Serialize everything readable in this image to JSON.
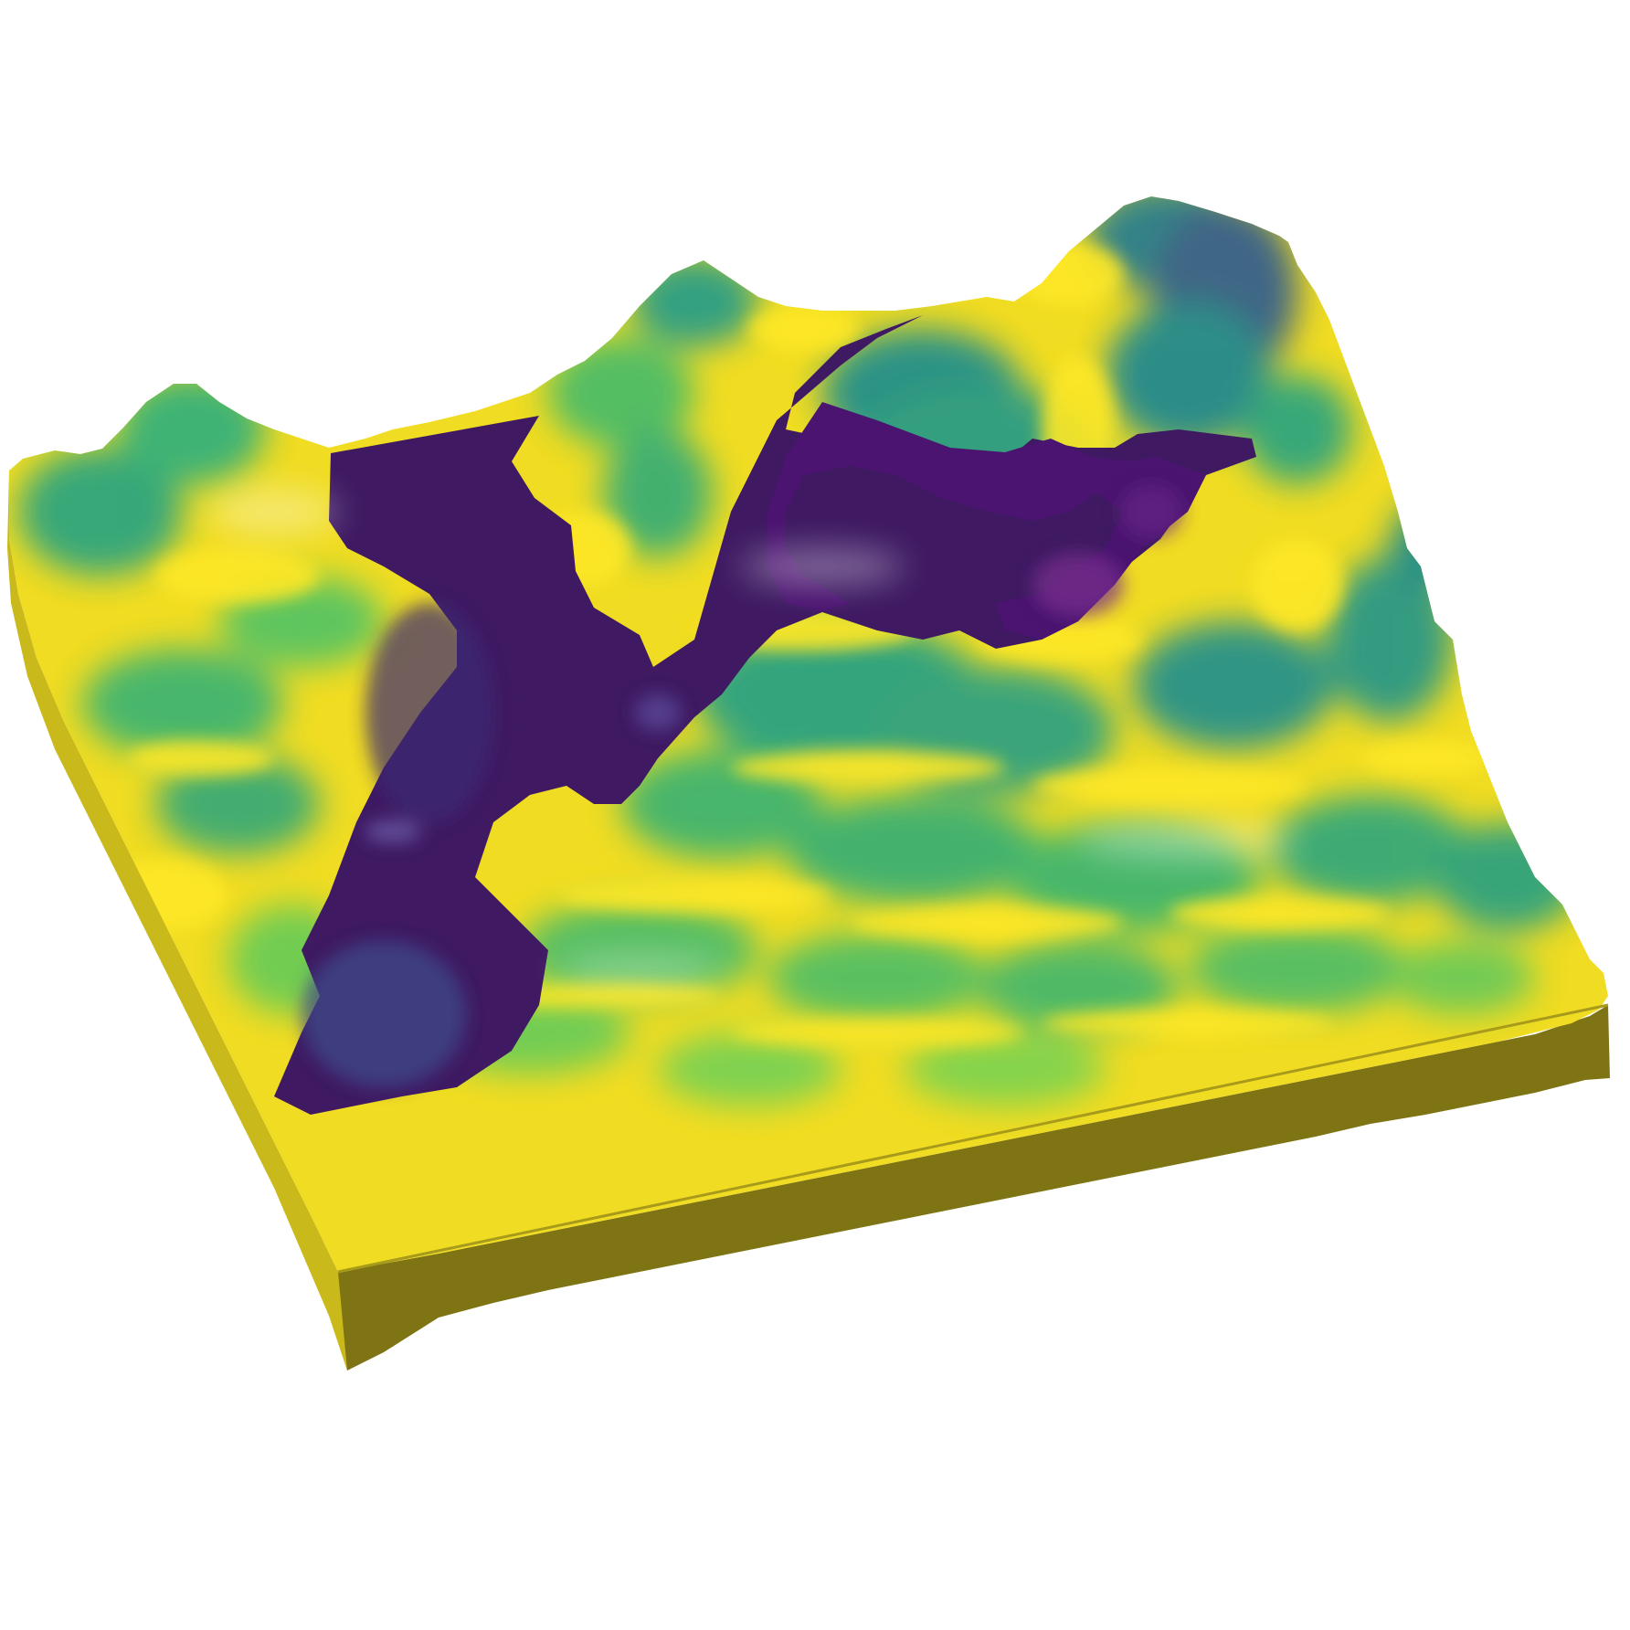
{
  "scene": {
    "type": "3d-surface-render",
    "colormap": [
      "#440154",
      "#3b528b",
      "#21918c",
      "#5ec962",
      "#fde725"
    ],
    "base_color": "#7f7414",
    "background": "#ffffff"
  }
}
